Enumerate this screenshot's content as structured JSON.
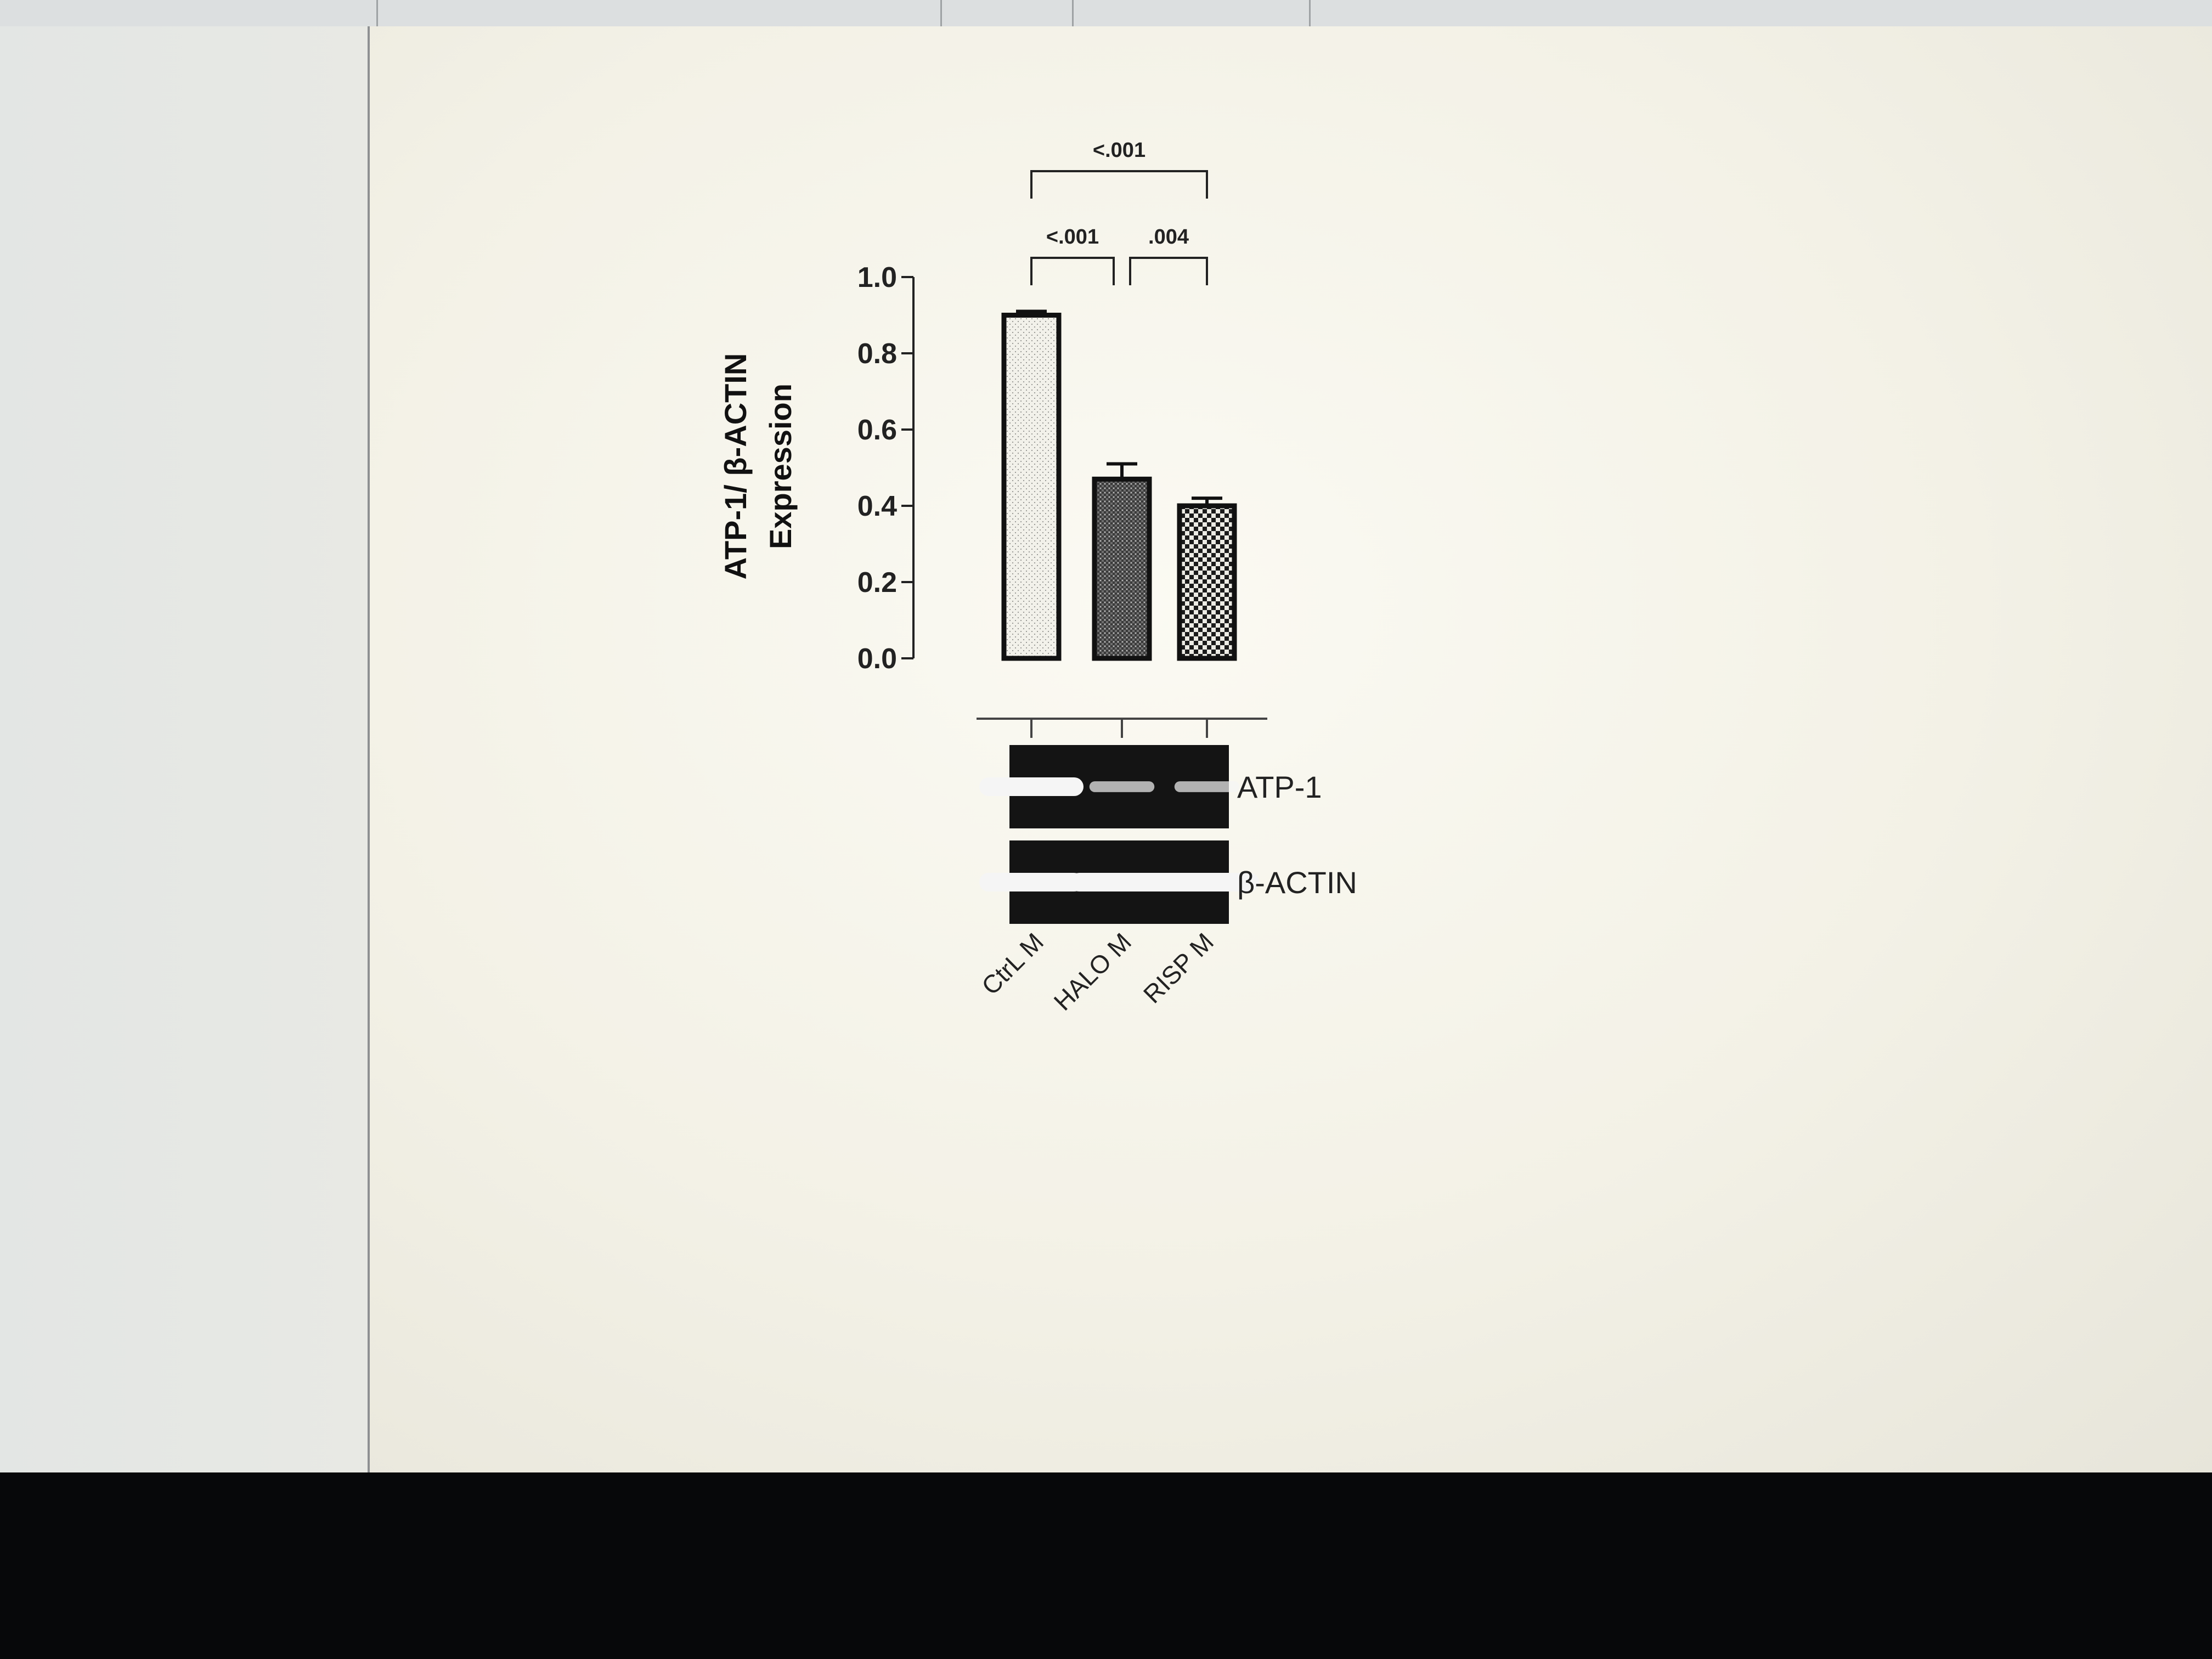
{
  "chart_data": {
    "type": "bar",
    "ylabel": "ATP-1/ β-ACTIN\nExpression",
    "yticks": [
      "0.0",
      "0.2",
      "0.4",
      "0.6",
      "0.8",
      "1.0"
    ],
    "ylim": [
      0,
      1.0
    ],
    "categories": [
      "CtrL M",
      "HALO M",
      "RISP M"
    ],
    "values": [
      0.9,
      0.47,
      0.4
    ],
    "errors": [
      0.01,
      0.04,
      0.02
    ],
    "significance": [
      {
        "from": 0,
        "to": 1,
        "label": "<.001"
      },
      {
        "from": 1,
        "to": 2,
        "label": ".004"
      },
      {
        "from": 0,
        "to": 2,
        "label": "<.001"
      }
    ],
    "blot": {
      "rows": [
        {
          "label": "ATP-1",
          "intensities": [
            1.0,
            0.35,
            0.35
          ]
        },
        {
          "label": "β-ACTIN",
          "intensities": [
            1.0,
            1.0,
            1.0
          ]
        }
      ]
    }
  }
}
